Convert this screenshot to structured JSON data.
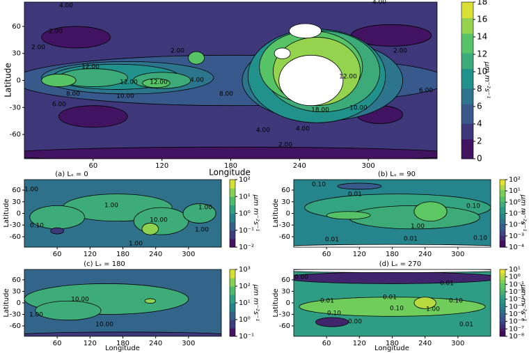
{
  "chart_data": [
    {
      "type": "contour",
      "ylabel": "Latitude",
      "xlabel": "Longitude",
      "cbar_label": "μm m⁻²s⁻¹",
      "xlim": [
        0,
        360
      ],
      "ylim": [
        -87,
        87
      ],
      "xticks": [
        60,
        120,
        180,
        240,
        300
      ],
      "yticks": [
        60,
        30,
        0,
        -30,
        -60
      ],
      "cbar_lim": [
        0,
        18
      ],
      "cbar_ticks": [
        0,
        2,
        4,
        6,
        8,
        10,
        12,
        14,
        16,
        18
      ],
      "cbar_log": false,
      "contour_labels": [
        "4.00",
        "2.00",
        "2.00",
        "12.00",
        "8.00",
        "6.00",
        "10.00",
        "12.00",
        "12.00",
        "2.00",
        "8.00",
        "4.00",
        "4.00",
        "18.00",
        "10.00",
        "12.00",
        "2.00",
        "4.00",
        "2.00",
        "4.00",
        "6.00"
      ]
    },
    {
      "type": "contour",
      "caption": "(a)  Lₛ = 0",
      "ylabel": "Latitude",
      "cbar_label": "μm m⁻²s⁻¹",
      "xlim": [
        0,
        360
      ],
      "ylim": [
        -87,
        87
      ],
      "xticks": [
        60,
        120,
        180,
        240,
        300
      ],
      "yticks": [
        60,
        30,
        0,
        -30,
        -60
      ],
      "cbar_lim": [
        0.01,
        100
      ],
      "cbar_log": true,
      "cbar_ticks": [
        {
          "value": 0.01,
          "label": "10⁻²"
        },
        {
          "value": 0.1,
          "label": "10⁻¹"
        },
        {
          "value": 1,
          "label": "10⁰"
        },
        {
          "value": 10,
          "label": "10¹"
        },
        {
          "value": 100,
          "label": "10²"
        }
      ],
      "contour_labels": [
        "1.00",
        "1.00",
        "0.10",
        "10.00",
        "1.00",
        "1.00",
        "1.00"
      ]
    },
    {
      "type": "contour",
      "caption": "(b)  Lₛ = 90",
      "ylabel": "Latitude",
      "cbar_label": "μm m⁻²s⁻¹",
      "xlim": [
        0,
        360
      ],
      "ylim": [
        -87,
        87
      ],
      "xticks": [
        60,
        120,
        180,
        240,
        300
      ],
      "yticks": [
        60,
        30,
        0,
        -30,
        -60
      ],
      "cbar_lim": [
        0.0001,
        100
      ],
      "cbar_log": true,
      "cbar_ticks": [
        {
          "value": 0.0001,
          "label": "10⁻⁴"
        },
        {
          "value": 0.001,
          "label": "10⁻³"
        },
        {
          "value": 0.01,
          "label": "10⁻²"
        },
        {
          "value": 0.1,
          "label": "10⁻¹"
        },
        {
          "value": 1,
          "label": "10⁰"
        },
        {
          "value": 10,
          "label": "10¹"
        },
        {
          "value": 100,
          "label": "10²"
        }
      ],
      "contour_labels": [
        "0.10",
        "0.01",
        "0.10",
        "1.00",
        "0.01",
        "0.01",
        "0.10"
      ]
    },
    {
      "type": "contour",
      "caption": "(c)  Lₛ = 180",
      "ylabel": "Latitude",
      "xlabel": "Longitude",
      "cbar_label": "μm m⁻²s⁻¹",
      "xlim": [
        0,
        360
      ],
      "ylim": [
        -87,
        87
      ],
      "xticks": [
        60,
        120,
        180,
        240,
        300
      ],
      "yticks": [
        60,
        30,
        0,
        -30,
        -60
      ],
      "cbar_lim": [
        0.1,
        1000
      ],
      "cbar_log": true,
      "cbar_ticks": [
        {
          "value": 0.1,
          "label": "10⁻¹"
        },
        {
          "value": 1,
          "label": "10⁰"
        },
        {
          "value": 10,
          "label": "10¹"
        },
        {
          "value": 100,
          "label": "10²"
        },
        {
          "value": 1000,
          "label": "10³"
        }
      ],
      "contour_labels": [
        "10.00",
        "1.00",
        "10.00"
      ]
    },
    {
      "type": "contour",
      "caption": "(d)  Lₛ = 270",
      "ylabel": "Latitude",
      "xlabel": "Longitude",
      "cbar_label": "μm m⁻²s⁻¹",
      "xlim": [
        0,
        360
      ],
      "ylim": [
        -87,
        87
      ],
      "xticks": [
        60,
        120,
        180,
        240,
        300
      ],
      "yticks": [
        60,
        30,
        0,
        -30,
        -60
      ],
      "cbar_lim": [
        1e-08,
        10
      ],
      "cbar_log": true,
      "cbar_ticks": [
        {
          "value": 1e-08,
          "label": "10⁻⁸"
        },
        {
          "value": 1e-07,
          "label": "10⁻⁷"
        },
        {
          "value": 1e-06,
          "label": "10⁻⁶"
        },
        {
          "value": 1e-05,
          "label": "10⁻⁵"
        },
        {
          "value": 0.0001,
          "label": "10⁻⁴"
        },
        {
          "value": 0.001,
          "label": "10⁻³"
        },
        {
          "value": 0.01,
          "label": "10⁻²"
        },
        {
          "value": 0.1,
          "label": "10⁻¹"
        },
        {
          "value": 1,
          "label": "10⁰"
        },
        {
          "value": 10,
          "label": "10¹"
        }
      ],
      "contour_labels": [
        "0.00",
        "0.01",
        "0.10",
        "0.01",
        "0.10",
        "1.00",
        "0.01",
        "0.10",
        "0.01",
        "0.00"
      ]
    }
  ]
}
